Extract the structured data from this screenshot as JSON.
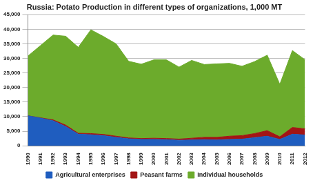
{
  "chart_data": {
    "type": "area",
    "title": "Russia: Potato Production in different types of organizations, 1,000 MT",
    "categories": [
      "1990",
      "1991",
      "1992",
      "1993",
      "1994",
      "1995",
      "1996",
      "1997",
      "1998",
      "1999",
      "2000",
      "2001",
      "2002",
      "2003",
      "2004",
      "2005",
      "2006",
      "2007",
      "2008",
      "2009",
      "2010",
      "2011",
      "2012"
    ],
    "series": [
      {
        "name": "Agricultural enterprises",
        "color": "#1f5dbf",
        "values": [
          10300,
          9500,
          8600,
          6600,
          4000,
          3800,
          3500,
          2900,
          2400,
          2200,
          2200,
          2100,
          1900,
          2000,
          2100,
          2000,
          2200,
          2300,
          2800,
          3300,
          2200,
          4000,
          3700
        ]
      },
      {
        "name": "Peasant farms",
        "color": "#a31515",
        "values": [
          0,
          100,
          300,
          500,
          300,
          400,
          400,
          400,
          300,
          300,
          400,
          400,
          400,
          600,
          800,
          900,
          1100,
          1200,
          1400,
          1900,
          900,
          2300,
          2100
        ]
      },
      {
        "name": "Individual households",
        "color": "#6cab2c",
        "values": [
          20500,
          24800,
          29100,
          30500,
          29500,
          35600,
          33600,
          31700,
          26300,
          25500,
          26900,
          27000,
          24700,
          26700,
          25000,
          25200,
          25000,
          23800,
          24700,
          25900,
          18000,
          26400,
          23700
        ]
      }
    ],
    "ylim": [
      0,
      45000
    ],
    "yticks": [
      0,
      {
        "value": 5000,
        "label": "5,000"
      },
      {
        "value": 10000,
        "label": "10,000"
      },
      {
        "value": 15000,
        "label": "15,000"
      },
      {
        "value": 20000,
        "label": "20,000"
      },
      {
        "value": 25000,
        "label": "25,000"
      },
      {
        "value": 30000,
        "label": "30,000"
      },
      {
        "value": 35000,
        "label": "35,000"
      },
      {
        "value": 40000,
        "label": "40,000"
      },
      {
        "value": 45000,
        "label": "45,000"
      }
    ],
    "stacked": true,
    "grid": true,
    "legend": "bottom"
  }
}
